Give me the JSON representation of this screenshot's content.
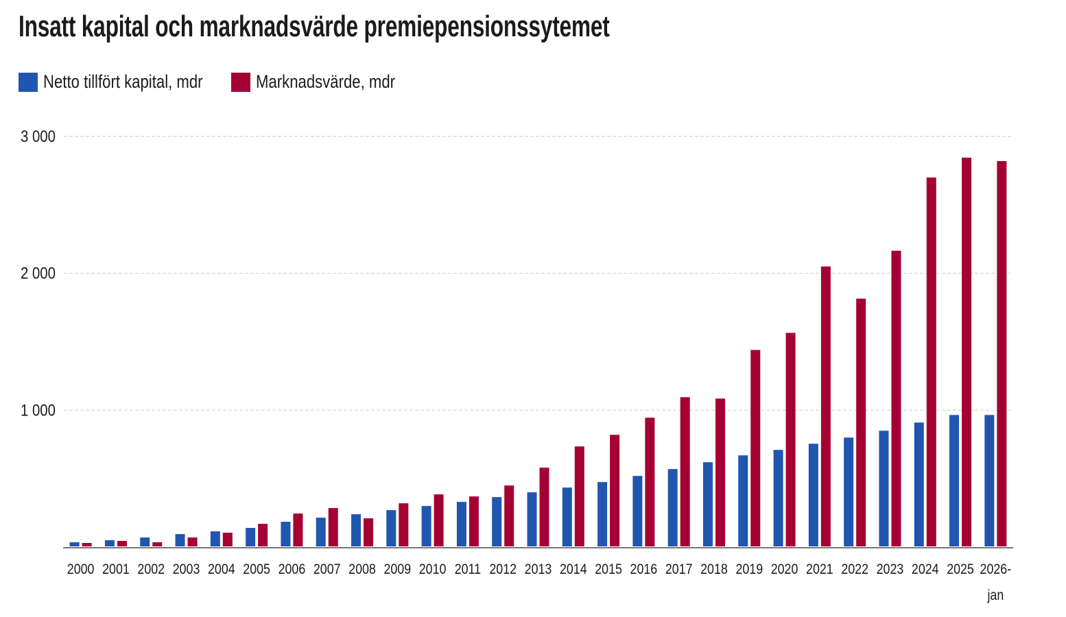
{
  "chart_data": {
    "type": "bar",
    "title": "Insatt kapital och marknadsvärde premiepensionssytemet",
    "xlabel": "",
    "ylabel": "",
    "ylim": [
      0,
      3000
    ],
    "yticks": [
      {
        "value": 1000,
        "label": "1 000"
      },
      {
        "value": 2000,
        "label": "2 000"
      },
      {
        "value": 3000,
        "label": "3 000"
      }
    ],
    "grid": "horizontal dashed",
    "legend_position": "top-left",
    "categories": [
      "2000",
      "2001",
      "2002",
      "2003",
      "2004",
      "2005",
      "2006",
      "2007",
      "2008",
      "2009",
      "2010",
      "2011",
      "2012",
      "2013",
      "2014",
      "2015",
      "2016",
      "2017",
      "2018",
      "2019",
      "2020",
      "2021",
      "2022",
      "2023",
      "2024",
      "2025",
      "2026-jan"
    ],
    "category_labels": [
      [
        "2000"
      ],
      [
        "2001"
      ],
      [
        "2002"
      ],
      [
        "2003"
      ],
      [
        "2004"
      ],
      [
        "2005"
      ],
      [
        "2006"
      ],
      [
        "2007"
      ],
      [
        "2008"
      ],
      [
        "2009"
      ],
      [
        "2010"
      ],
      [
        "2011"
      ],
      [
        "2012"
      ],
      [
        "2013"
      ],
      [
        "2014"
      ],
      [
        "2015"
      ],
      [
        "2016"
      ],
      [
        "2017"
      ],
      [
        "2018"
      ],
      [
        "2019"
      ],
      [
        "2020"
      ],
      [
        "2021"
      ],
      [
        "2022"
      ],
      [
        "2023"
      ],
      [
        "2024"
      ],
      [
        "2025"
      ],
      [
        "2026-",
        "jan"
      ]
    ],
    "series": [
      {
        "name": "Netto tillfört kapital, mdr",
        "color": "#2156b0",
        "values": [
          35,
          50,
          70,
          95,
          115,
          140,
          185,
          215,
          240,
          270,
          300,
          330,
          365,
          400,
          435,
          475,
          520,
          570,
          620,
          670,
          710,
          755,
          800,
          850,
          910,
          965,
          965
        ]
      },
      {
        "name": "Marknadsvärde, mdr",
        "color": "#a50034",
        "values": [
          30,
          45,
          35,
          70,
          105,
          170,
          245,
          285,
          210,
          320,
          385,
          370,
          450,
          580,
          735,
          820,
          945,
          1095,
          1085,
          1440,
          1565,
          2050,
          1815,
          2165,
          2700,
          2845,
          2820
        ]
      }
    ]
  }
}
